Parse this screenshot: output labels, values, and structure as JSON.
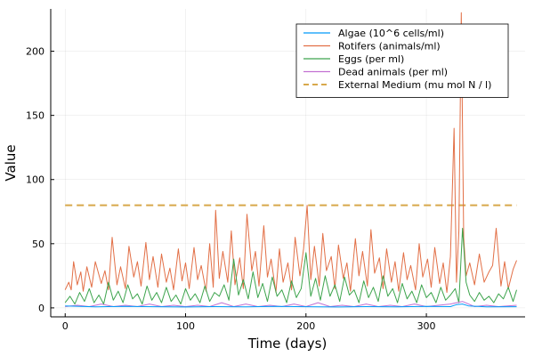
{
  "chart_data": {
    "type": "line",
    "title": "",
    "xlabel": "Time (days)",
    "ylabel": "Value",
    "xlim": [
      -12,
      382
    ],
    "ylim": [
      -7,
      233
    ],
    "xticks": [
      0,
      100,
      200,
      300
    ],
    "yticks": [
      0,
      50,
      100,
      150,
      200
    ],
    "grid": true,
    "legend_position": "top-right",
    "series": [
      {
        "name": "Algae (10^6 cells/ml)",
        "color": "#009af9",
        "style": "solid",
        "x": [
          0,
          25,
          50,
          75,
          100,
          125,
          150,
          175,
          200,
          225,
          250,
          275,
          300,
          320,
          325,
          330,
          335,
          350,
          375
        ],
        "y": [
          1.5,
          0.8,
          1.2,
          0.9,
          0.7,
          1.0,
          0.8,
          1.1,
          0.9,
          0.7,
          1.0,
          0.8,
          1.2,
          1.0,
          2.5,
          3.0,
          1.5,
          0.8,
          0.9
        ]
      },
      {
        "name": "Rotifers (animals/ml)",
        "color": "#e26f46",
        "style": "solid",
        "x": [
          0,
          3,
          5,
          7,
          10,
          13,
          15,
          18,
          22,
          25,
          30,
          33,
          36,
          39,
          43,
          46,
          50,
          53,
          57,
          60,
          63,
          67,
          70,
          73,
          77,
          80,
          84,
          87,
          90,
          94,
          97,
          100,
          103,
          107,
          110,
          113,
          117,
          120,
          123,
          125,
          128,
          131,
          135,
          138,
          141,
          145,
          148,
          151,
          155,
          158,
          161,
          165,
          168,
          171,
          175,
          178,
          181,
          185,
          188,
          191,
          195,
          198,
          201,
          204,
          207,
          211,
          214,
          217,
          221,
          224,
          227,
          231,
          234,
          237,
          241,
          244,
          247,
          251,
          254,
          257,
          261,
          264,
          267,
          271,
          274,
          277,
          281,
          284,
          287,
          291,
          294,
          297,
          301,
          304,
          307,
          311,
          314,
          317,
          320,
          323,
          325,
          327,
          329,
          331,
          333,
          336,
          340,
          344,
          348,
          352,
          355,
          358,
          362,
          365,
          368,
          372,
          375
        ],
        "y": [
          14,
          20,
          14,
          36,
          18,
          28,
          13,
          32,
          16,
          36,
          19,
          29,
          14,
          55,
          18,
          32,
          15,
          48,
          24,
          36,
          17,
          51,
          22,
          40,
          16,
          42,
          20,
          31,
          14,
          46,
          21,
          35,
          15,
          47,
          22,
          33,
          13,
          50,
          16,
          76,
          23,
          44,
          20,
          60,
          18,
          39,
          15,
          73,
          29,
          44,
          17,
          64,
          24,
          38,
          12,
          46,
          20,
          35,
          14,
          55,
          25,
          46,
          80,
          22,
          48,
          17,
          58,
          29,
          40,
          15,
          49,
          23,
          35,
          13,
          54,
          25,
          44,
          17,
          61,
          27,
          39,
          15,
          46,
          20,
          36,
          13,
          43,
          22,
          33,
          14,
          50,
          24,
          38,
          16,
          47,
          19,
          35,
          12,
          40,
          140,
          20,
          60,
          230,
          55,
          25,
          35,
          18,
          42,
          20,
          28,
          33,
          62,
          17,
          36,
          15,
          30,
          37
        ]
      },
      {
        "name": "Eggs (per ml)",
        "color": "#3da44d",
        "style": "solid",
        "x": [
          0,
          4,
          8,
          12,
          16,
          20,
          24,
          28,
          32,
          36,
          40,
          44,
          48,
          52,
          56,
          60,
          64,
          68,
          72,
          76,
          80,
          84,
          88,
          92,
          96,
          100,
          104,
          108,
          112,
          116,
          120,
          124,
          128,
          132,
          136,
          140,
          144,
          148,
          152,
          156,
          160,
          164,
          168,
          172,
          176,
          180,
          184,
          188,
          192,
          196,
          200,
          204,
          208,
          212,
          216,
          220,
          224,
          228,
          232,
          236,
          240,
          244,
          248,
          252,
          256,
          260,
          264,
          268,
          272,
          276,
          280,
          284,
          288,
          292,
          296,
          300,
          304,
          308,
          312,
          316,
          320,
          324,
          327,
          330,
          333,
          336,
          340,
          344,
          348,
          352,
          356,
          360,
          364,
          368,
          372,
          375
        ],
        "y": [
          4,
          9,
          3,
          12,
          5,
          15,
          4,
          10,
          3,
          20,
          6,
          13,
          4,
          18,
          7,
          11,
          3,
          17,
          6,
          12,
          4,
          16,
          5,
          10,
          3,
          15,
          6,
          11,
          4,
          17,
          5,
          12,
          9,
          18,
          6,
          38,
          10,
          22,
          7,
          28,
          8,
          19,
          5,
          24,
          9,
          14,
          4,
          21,
          8,
          15,
          43,
          9,
          23,
          6,
          25,
          9,
          18,
          5,
          24,
          10,
          14,
          4,
          21,
          8,
          16,
          5,
          25,
          9,
          15,
          4,
          19,
          7,
          13,
          4,
          18,
          8,
          12,
          4,
          16,
          6,
          10,
          15,
          4,
          62,
          20,
          10,
          5,
          12,
          6,
          9,
          4,
          11,
          7,
          16,
          5,
          14
        ]
      },
      {
        "name": "Dead animals (per ml)",
        "color": "#c271d2",
        "style": "solid",
        "x": [
          0,
          10,
          20,
          30,
          40,
          50,
          60,
          70,
          80,
          90,
          100,
          110,
          120,
          130,
          140,
          150,
          160,
          170,
          180,
          190,
          200,
          210,
          220,
          230,
          240,
          250,
          260,
          270,
          280,
          290,
          300,
          310,
          320,
          330,
          340,
          350,
          360,
          375
        ],
        "y": [
          1,
          2,
          1,
          3,
          1,
          2,
          1,
          3,
          1,
          2,
          1,
          2,
          1,
          4,
          1,
          3,
          1,
          2,
          1,
          3,
          1,
          4,
          1,
          2,
          1,
          3,
          1,
          2,
          1,
          3,
          1,
          2,
          3,
          5,
          1,
          2,
          1,
          2
        ]
      },
      {
        "name": "External Medium (mu mol N / l)",
        "color": "#d8a84b",
        "style": "dashed",
        "x": [
          0,
          375
        ],
        "y": [
          80,
          80
        ]
      }
    ]
  }
}
